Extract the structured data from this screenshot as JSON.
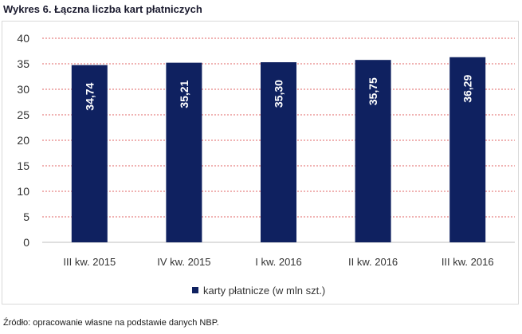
{
  "title": "Wykres 6. Łączna liczba kart płatniczych",
  "source": "Źródło: opracowanie własne na podstawie danych NBP.",
  "colors": {
    "bar": "#0f2160",
    "grid": "#e06666",
    "axis": "#bfbfbf"
  },
  "chart_data": {
    "type": "bar",
    "title": "Wykres 6. Łączna liczba kart płatniczych",
    "xlabel": "",
    "ylabel": "",
    "categories": [
      "III kw. 2015",
      "IV kw. 2015",
      "I kw. 2016",
      "II kw. 2016",
      "III kw. 2016"
    ],
    "series": [
      {
        "name": "karty płatnicze (w mln szt.)",
        "values": [
          34.74,
          35.21,
          35.3,
          35.75,
          36.29
        ],
        "labels": [
          "34,74",
          "35,21",
          "35,30",
          "35,75",
          "36,29"
        ]
      }
    ],
    "ylim": [
      0,
      40
    ],
    "yticks": [
      "0",
      "5",
      "10",
      "15",
      "20",
      "25",
      "30",
      "35",
      "40"
    ],
    "grid": true,
    "legend_position": "bottom"
  }
}
